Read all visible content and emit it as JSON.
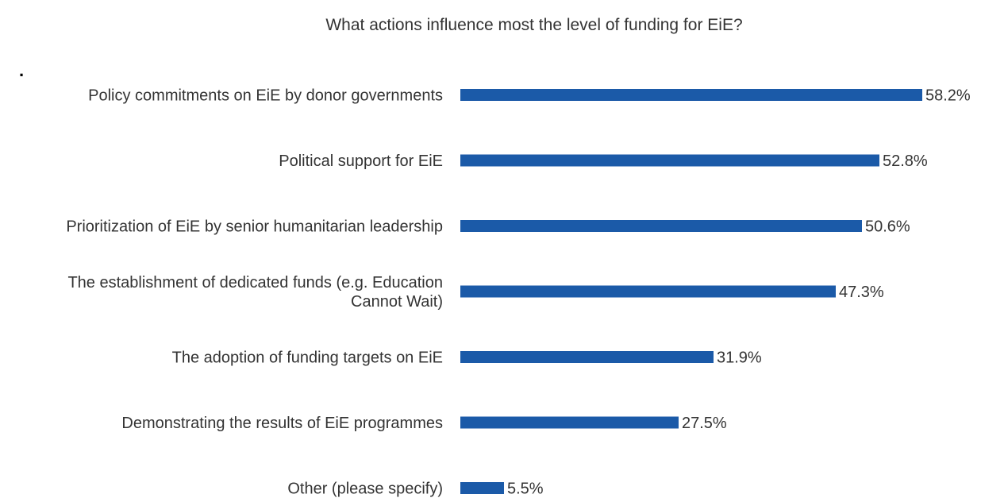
{
  "chart_data": {
    "type": "bar",
    "orientation": "horizontal",
    "title": "What actions influence most the level of funding for EiE?",
    "stray_mark": ".",
    "categories": [
      "Policy commitments on EiE by donor governments",
      "Political support for EiE",
      "Prioritization of EiE by senior humanitarian leadership",
      "The establishment of dedicated funds (e.g. Education Cannot Wait)",
      "The adoption of funding targets on EiE",
      "Demonstrating the results of EiE programmes",
      "Other (please specify)"
    ],
    "category_lines": [
      [
        "Policy commitments on EiE by donor governments"
      ],
      [
        "Political support for EiE"
      ],
      [
        "Prioritization of EiE by senior humanitarian leadership"
      ],
      [
        "The establishment of dedicated funds (e.g. Education",
        "Cannot Wait)"
      ],
      [
        "The adoption of funding targets on EiE"
      ],
      [
        "Demonstrating the results of EiE programmes"
      ],
      [
        "Other (please specify)"
      ]
    ],
    "values": [
      58.2,
      52.8,
      50.6,
      47.3,
      31.9,
      27.5,
      5.5
    ],
    "value_labels": [
      "58.2%",
      "52.8%",
      "50.6%",
      "47.3%",
      "31.9%",
      "27.5%",
      "5.5%"
    ],
    "unit": "%",
    "xlim": [
      0,
      58.2
    ],
    "grid": false,
    "legend": "none",
    "bar_color": "#1b5aa8"
  }
}
